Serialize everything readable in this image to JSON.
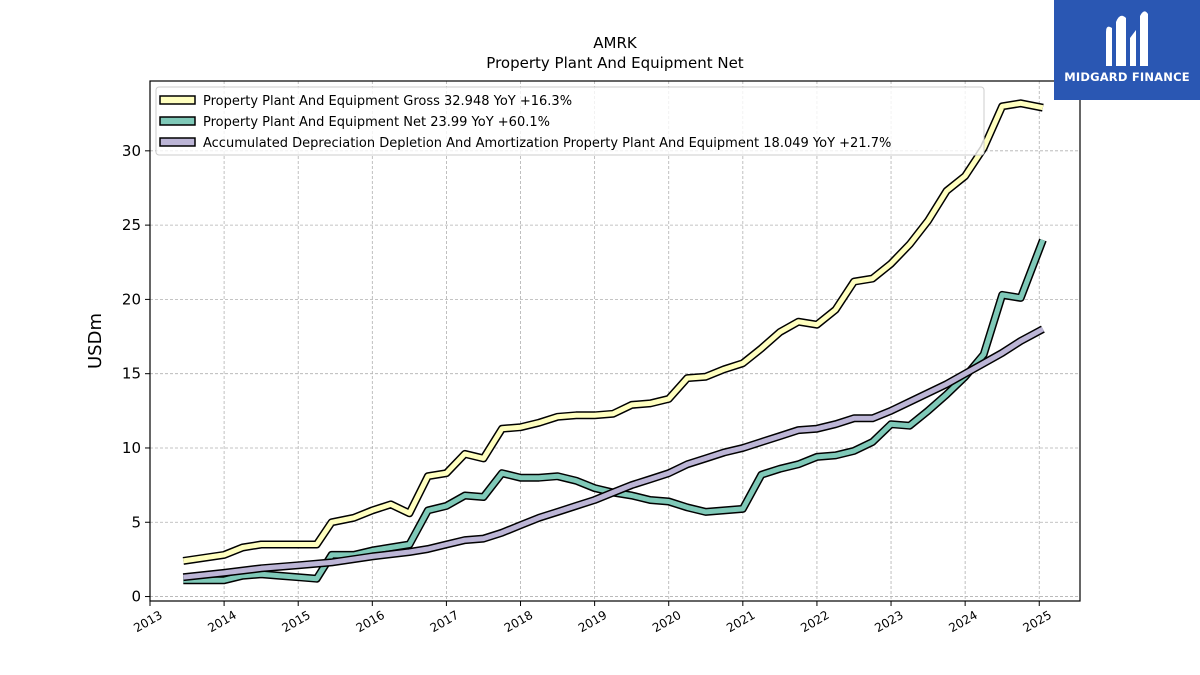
{
  "chart_data": {
    "type": "line",
    "title": "AMRK",
    "subtitle": "Property Plant And Equipment Net",
    "ylabel": "USDm",
    "xlabel": "",
    "xlim": [
      2013.0,
      2025.55
    ],
    "ylim": [
      -0.3,
      34.7
    ],
    "yticks": [
      0,
      5,
      10,
      15,
      20,
      25,
      30
    ],
    "xticks": [
      "2013",
      "2014",
      "2015",
      "2016",
      "2017",
      "2018",
      "2019",
      "2020",
      "2021",
      "2022",
      "2023",
      "2024",
      "2025"
    ],
    "grid": true,
    "legend_position": "top-left",
    "series": [
      {
        "name": "Property Plant And Equipment Gross  32.948 YoY +16.3%",
        "color": "#ffffbf",
        "x": [
          2013.45,
          2014.0,
          2014.25,
          2014.5,
          2014.75,
          2015.0,
          2015.25,
          2015.45,
          2015.75,
          2016.0,
          2016.25,
          2016.5,
          2016.75,
          2017.0,
          2017.25,
          2017.5,
          2017.75,
          2018.0,
          2018.25,
          2018.5,
          2018.75,
          2019.0,
          2019.25,
          2019.5,
          2019.75,
          2020.0,
          2020.25,
          2020.5,
          2020.75,
          2021.0,
          2021.25,
          2021.5,
          2021.75,
          2022.0,
          2022.25,
          2022.5,
          2022.75,
          2023.0,
          2023.25,
          2023.5,
          2023.75,
          2024.0,
          2024.25,
          2024.5,
          2024.75,
          2025.05
        ],
        "values": [
          2.4,
          2.8,
          3.3,
          3.5,
          3.5,
          3.5,
          3.5,
          5.0,
          5.3,
          5.8,
          6.2,
          5.6,
          8.1,
          8.3,
          9.6,
          9.3,
          11.3,
          11.4,
          11.7,
          12.1,
          12.2,
          12.2,
          12.3,
          12.9,
          13.0,
          13.3,
          14.7,
          14.8,
          15.3,
          15.7,
          16.7,
          17.8,
          18.5,
          18.3,
          19.3,
          21.2,
          21.4,
          22.4,
          23.7,
          25.3,
          27.3,
          28.3,
          30.2,
          33.0,
          33.2,
          32.9
        ]
      },
      {
        "name": "Property Plant And Equipment Net  23.99 YoY +60.1%",
        "color": "#7fc9b8",
        "x": [
          2013.45,
          2014.0,
          2014.25,
          2014.5,
          2014.75,
          2015.0,
          2015.25,
          2015.45,
          2015.75,
          2016.0,
          2016.25,
          2016.5,
          2016.75,
          2017.0,
          2017.25,
          2017.5,
          2017.75,
          2018.0,
          2018.25,
          2018.5,
          2018.75,
          2019.0,
          2019.25,
          2019.5,
          2019.75,
          2020.0,
          2020.25,
          2020.5,
          2020.75,
          2021.0,
          2021.25,
          2021.5,
          2021.75,
          2022.0,
          2022.25,
          2022.5,
          2022.75,
          2023.0,
          2023.25,
          2023.5,
          2023.75,
          2024.0,
          2024.25,
          2024.5,
          2024.75,
          2025.05
        ],
        "values": [
          1.1,
          1.1,
          1.4,
          1.5,
          1.4,
          1.3,
          1.2,
          2.8,
          2.8,
          3.1,
          3.3,
          3.5,
          5.8,
          6.1,
          6.8,
          6.7,
          8.3,
          8.0,
          8.0,
          8.1,
          7.8,
          7.3,
          7.0,
          6.8,
          6.5,
          6.4,
          6.0,
          5.7,
          5.8,
          5.9,
          8.2,
          8.6,
          8.9,
          9.4,
          9.5,
          9.8,
          10.4,
          11.6,
          11.5,
          12.5,
          13.6,
          14.8,
          16.3,
          20.3,
          20.1,
          24.0
        ]
      },
      {
        "name": "Accumulated Depreciation Depletion And Amortization Property Plant And Equipment  18.049 YoY +21.7%",
        "color": "#bcb5d6",
        "x": [
          2013.45,
          2014.0,
          2014.5,
          2015.0,
          2015.45,
          2016.0,
          2016.5,
          2016.75,
          2017.0,
          2017.25,
          2017.5,
          2017.75,
          2018.0,
          2018.25,
          2018.5,
          2018.75,
          2019.0,
          2019.25,
          2019.5,
          2019.75,
          2020.0,
          2020.25,
          2020.5,
          2020.75,
          2021.0,
          2021.25,
          2021.5,
          2021.75,
          2022.0,
          2022.25,
          2022.5,
          2022.75,
          2023.0,
          2023.25,
          2023.5,
          2023.75,
          2024.0,
          2024.25,
          2024.5,
          2024.75,
          2025.05
        ],
        "values": [
          1.3,
          1.6,
          1.9,
          2.1,
          2.3,
          2.7,
          3.0,
          3.2,
          3.5,
          3.8,
          3.9,
          4.3,
          4.8,
          5.3,
          5.7,
          6.1,
          6.5,
          7.0,
          7.5,
          7.9,
          8.3,
          8.9,
          9.3,
          9.7,
          10.0,
          10.4,
          10.8,
          11.2,
          11.3,
          11.6,
          12.0,
          12.0,
          12.5,
          13.1,
          13.7,
          14.3,
          15.0,
          15.7,
          16.4,
          17.2,
          18.0
        ]
      }
    ]
  },
  "watermark": {
    "text": "MIDGARD FINANCE",
    "background": "#2a57b3"
  }
}
